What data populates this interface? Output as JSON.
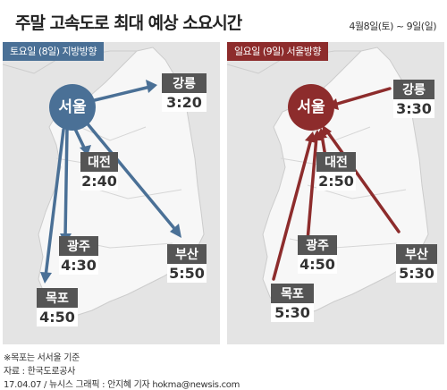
{
  "title": "주말 고속도로 최대 예상 소요시간",
  "date_range": "4월8일(토) ~ 9일(일)",
  "panels": {
    "left": {
      "badge": "토요일 (8일) 지방방향",
      "hub": "서울",
      "color": "#4a7096",
      "routes": [
        {
          "city": "강릉",
          "time": "3:20"
        },
        {
          "city": "대전",
          "time": "2:40"
        },
        {
          "city": "광주",
          "time": "4:30"
        },
        {
          "city": "부산",
          "time": "5:50"
        },
        {
          "city": "목포",
          "time": "4:50"
        }
      ]
    },
    "right": {
      "badge": "일요일 (9일) 서울방향",
      "hub": "서울",
      "color": "#8d2c2c",
      "routes": [
        {
          "city": "강릉",
          "time": "3:30"
        },
        {
          "city": "대전",
          "time": "2:50"
        },
        {
          "city": "광주",
          "time": "4:50"
        },
        {
          "city": "부산",
          "time": "5:30"
        },
        {
          "city": "목포",
          "time": "5:30"
        }
      ]
    }
  },
  "footer": {
    "note": "※목포는 서서울 기준",
    "source": "자료 : 한국도로공사",
    "credit": "17.04.07 / 뉴시스 그래픽 : 안지혜 기자 hokma@newsis.com"
  }
}
